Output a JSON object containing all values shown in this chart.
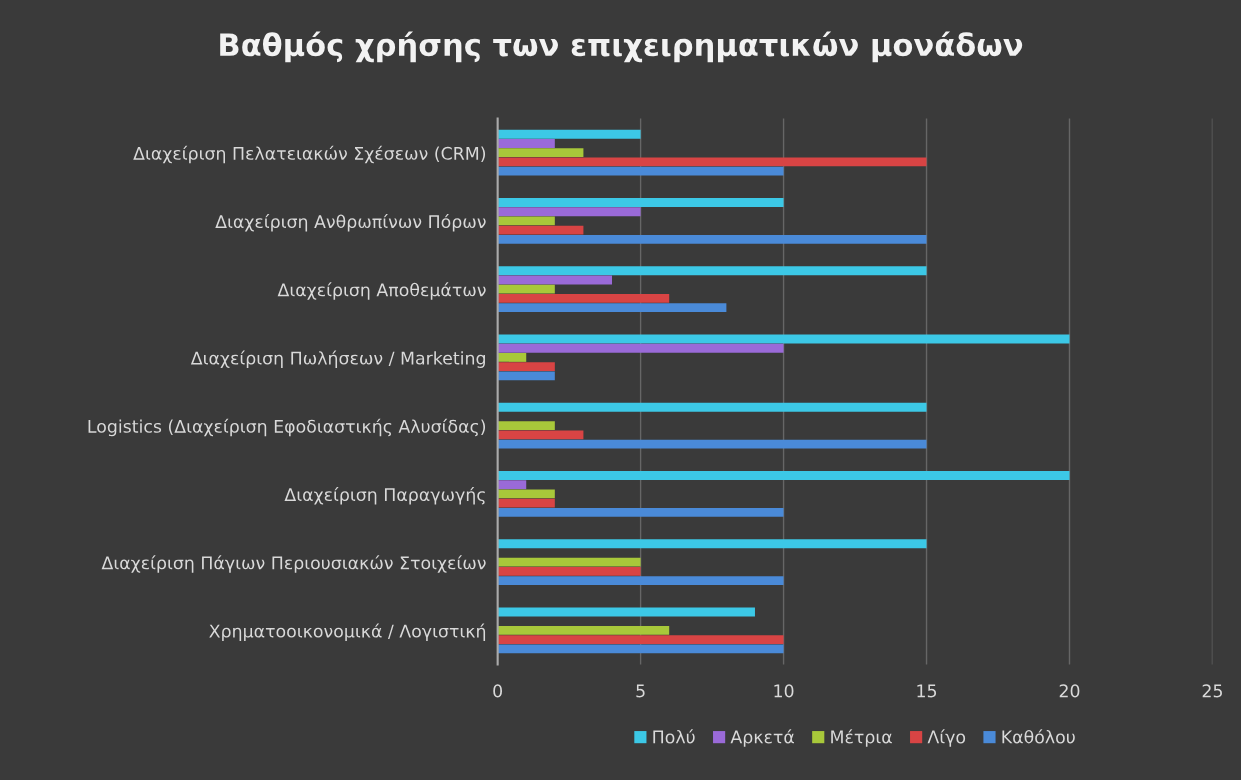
{
  "chart_data": {
    "type": "bar",
    "orientation": "horizontal",
    "title": "Βαθμός χρήσης των επιχειρηματικών μονάδων",
    "categories": [
      "Διαχείριση Πελατειακών Σχέσεων (CRM)",
      "Διαχείριση Ανθρωπίνων Πόρων",
      "Διαχείριση Αποθεμάτων",
      "Διαχείριση Πωλήσεων / Marketing",
      "Logistics (Διαχείριση Εφοδιαστικής Αλυσίδας)",
      "Διαχείριση Παραγωγής",
      "Διαχείριση Πάγιων Περιουσιακών Στοιχείων",
      "Χρηματοοικονομικά / Λογιστική"
    ],
    "series": [
      {
        "name": "Πολύ",
        "color": "#3cc8e6",
        "values": [
          5,
          10,
          15,
          20,
          15,
          20,
          15,
          9
        ]
      },
      {
        "name": "Αρκετά",
        "color": "#9a6ad8",
        "values": [
          2,
          5,
          4,
          10,
          0,
          1,
          0,
          0
        ]
      },
      {
        "name": "Μέτρια",
        "color": "#a8c83a",
        "values": [
          3,
          2,
          2,
          1,
          2,
          2,
          5,
          6
        ]
      },
      {
        "name": "Λίγο",
        "color": "#d84444",
        "values": [
          15,
          3,
          6,
          2,
          3,
          2,
          5,
          10
        ]
      },
      {
        "name": "Καθόλου",
        "color": "#4a8ad8",
        "values": [
          10,
          15,
          8,
          2,
          15,
          10,
          10,
          10
        ]
      }
    ],
    "xlim": [
      0,
      25
    ],
    "xticks": [
      0,
      5,
      10,
      15,
      20,
      25
    ],
    "grid": "x",
    "legend": "bottom"
  }
}
